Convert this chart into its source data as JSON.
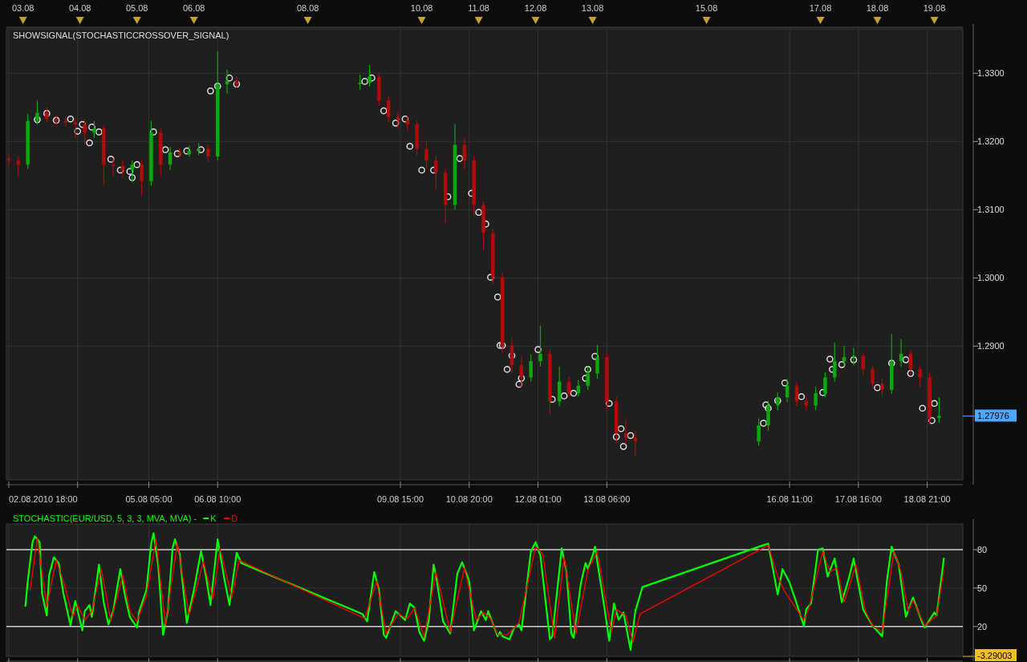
{
  "chart_data": [
    {
      "type": "candlestick",
      "title": "SHOWSIGNAL(STOCHASTICCROSSOVER_SIGNAL)",
      "x": [
        "2010-08-02T18:00",
        "2010-08-02T22:00",
        "2010-08-03T02:00",
        "2010-08-03T06:00",
        "2010-08-03T10:00",
        "2010-08-03T14:00",
        "2010-08-03T18:00",
        "2010-08-03T22:00",
        "2010-08-04T02:00",
        "2010-08-04T06:00",
        "2010-08-04T10:00",
        "2010-08-04T14:00",
        "2010-08-04T18:00",
        "2010-08-04T22:00",
        "2010-08-05T02:00",
        "2010-08-05T06:00",
        "2010-08-05T10:00",
        "2010-08-05T14:00",
        "2010-08-05T18:00",
        "2010-08-05T22:00",
        "2010-08-06T02:00",
        "2010-08-06T06:00",
        "2010-08-06T10:00",
        "2010-08-06T14:00",
        "2010-08-06T18:00",
        "2010-08-08T22:00",
        "2010-08-09T02:00",
        "2010-08-09T06:00",
        "2010-08-09T10:00",
        "2010-08-09T14:00",
        "2010-08-09T18:00",
        "2010-08-09T22:00",
        "2010-08-10T02:00",
        "2010-08-10T06:00",
        "2010-08-10T10:00",
        "2010-08-10T14:00",
        "2010-08-10T18:00",
        "2010-08-10T22:00",
        "2010-08-11T02:00",
        "2010-08-11T06:00",
        "2010-08-11T10:00",
        "2010-08-11T14:00",
        "2010-08-11T18:00",
        "2010-08-11T22:00",
        "2010-08-12T02:00",
        "2010-08-12T06:00",
        "2010-08-12T10:00",
        "2010-08-12T14:00",
        "2010-08-12T18:00",
        "2010-08-12T22:00",
        "2010-08-13T02:00",
        "2010-08-13T06:00",
        "2010-08-13T10:00",
        "2010-08-13T14:00",
        "2010-08-13T18:00",
        "2010-08-15T22:00",
        "2010-08-16T02:00",
        "2010-08-16T06:00",
        "2010-08-16T10:00",
        "2010-08-16T14:00",
        "2010-08-16T18:00",
        "2010-08-16T22:00",
        "2010-08-17T02:00",
        "2010-08-17T06:00",
        "2010-08-17T10:00",
        "2010-08-17T14:00",
        "2010-08-17T18:00",
        "2010-08-17T22:00",
        "2010-08-18T02:00",
        "2010-08-18T06:00",
        "2010-08-18T10:00",
        "2010-08-18T14:00",
        "2010-08-18T18:00",
        "2010-08-18T22:00",
        "2010-08-19T02:00"
      ],
      "ohlc": [
        [
          1.3175,
          1.3181,
          1.3165,
          1.3172
        ],
        [
          1.3172,
          1.3178,
          1.3148,
          1.3166
        ],
        [
          1.3166,
          1.324,
          1.316,
          1.323
        ],
        [
          1.323,
          1.326,
          1.3225,
          1.3242
        ],
        [
          1.3242,
          1.325,
          1.3228,
          1.3233
        ],
        [
          1.3233,
          1.3238,
          1.3224,
          1.323
        ],
        [
          1.323,
          1.3236,
          1.3222,
          1.3228
        ],
        [
          1.3228,
          1.3234,
          1.3205,
          1.3225
        ],
        [
          1.3225,
          1.3232,
          1.3195,
          1.3213
        ],
        [
          1.3213,
          1.323,
          1.3205,
          1.3219
        ],
        [
          1.3219,
          1.3224,
          1.3136,
          1.3166
        ],
        [
          1.3166,
          1.3175,
          1.315,
          1.3164
        ],
        [
          1.3164,
          1.3172,
          1.3148,
          1.3158
        ],
        [
          1.3158,
          1.3172,
          1.314,
          1.3166
        ],
        [
          1.3166,
          1.3172,
          1.312,
          1.3142
        ],
        [
          1.3142,
          1.323,
          1.3135,
          1.3213
        ],
        [
          1.3213,
          1.322,
          1.315,
          1.3166
        ],
        [
          1.3166,
          1.3192,
          1.3158,
          1.3184
        ],
        [
          1.3184,
          1.319,
          1.3176,
          1.3181
        ],
        [
          1.3181,
          1.3194,
          1.3178,
          1.3186
        ],
        [
          1.3186,
          1.3198,
          1.318,
          1.3189
        ],
        [
          1.3189,
          1.3195,
          1.317,
          1.3178
        ],
        [
          1.3178,
          1.3332,
          1.3172,
          1.3284
        ],
        [
          1.3284,
          1.3305,
          1.327,
          1.3289
        ],
        [
          1.3289,
          1.3296,
          1.3278,
          1.3284
        ],
        [
          1.3284,
          1.3298,
          1.3276,
          1.3286
        ],
        [
          1.3286,
          1.3312,
          1.328,
          1.3295
        ],
        [
          1.3295,
          1.33,
          1.3252,
          1.326
        ],
        [
          1.326,
          1.3266,
          1.3228,
          1.3236
        ],
        [
          1.3236,
          1.3244,
          1.3218,
          1.3231
        ],
        [
          1.3231,
          1.3238,
          1.3215,
          1.3225
        ],
        [
          1.3225,
          1.323,
          1.318,
          1.3189
        ],
        [
          1.3189,
          1.32,
          1.316,
          1.3172
        ],
        [
          1.3172,
          1.318,
          1.313,
          1.3154
        ],
        [
          1.3154,
          1.316,
          1.308,
          1.3107
        ],
        [
          1.3107,
          1.3226,
          1.31,
          1.3195
        ],
        [
          1.3195,
          1.3205,
          1.316,
          1.3172
        ],
        [
          1.3172,
          1.3178,
          1.3092,
          1.3107
        ],
        [
          1.3107,
          1.3112,
          1.304,
          1.3066
        ],
        [
          1.3066,
          1.3072,
          1.299,
          1.3001
        ],
        [
          1.3001,
          1.3008,
          1.289,
          1.2901
        ],
        [
          1.2901,
          1.2912,
          1.286,
          1.2872
        ],
        [
          1.2872,
          1.2885,
          1.284,
          1.2854
        ],
        [
          1.2854,
          1.2888,
          1.2848,
          1.2878
        ],
        [
          1.2878,
          1.293,
          1.287,
          1.2889
        ],
        [
          1.2889,
          1.2895,
          1.28,
          1.2819
        ],
        [
          1.2819,
          1.287,
          1.2812,
          1.2848
        ],
        [
          1.2848,
          1.2855,
          1.2825,
          1.2831
        ],
        [
          1.2831,
          1.285,
          1.2826,
          1.2842
        ],
        [
          1.2842,
          1.287,
          1.2836,
          1.286
        ],
        [
          1.286,
          1.2902,
          1.2852,
          1.2884
        ],
        [
          1.2884,
          1.289,
          1.2808,
          1.2819
        ],
        [
          1.2819,
          1.2826,
          1.2758,
          1.2772
        ],
        [
          1.2772,
          1.2792,
          1.2756,
          1.2766
        ],
        [
          1.2766,
          1.2775,
          1.274,
          1.276
        ],
        [
          1.276,
          1.2794,
          1.2754,
          1.2784
        ],
        [
          1.2784,
          1.282,
          1.2776,
          1.2813
        ],
        [
          1.2813,
          1.2832,
          1.2806,
          1.2825
        ],
        [
          1.2825,
          1.2852,
          1.2818,
          1.2842
        ],
        [
          1.2842,
          1.2848,
          1.2812,
          1.2819
        ],
        [
          1.2819,
          1.2826,
          1.2805,
          1.2813
        ],
        [
          1.2813,
          1.284,
          1.2806,
          1.2831
        ],
        [
          1.2831,
          1.2862,
          1.2825,
          1.2854
        ],
        [
          1.2854,
          1.2905,
          1.2848,
          1.2878
        ],
        [
          1.2878,
          1.29,
          1.287,
          1.2884
        ],
        [
          1.2884,
          1.2898,
          1.2872,
          1.2886
        ],
        [
          1.2886,
          1.289,
          1.2858,
          1.2866
        ],
        [
          1.2866,
          1.2872,
          1.2838,
          1.2845
        ],
        [
          1.2845,
          1.2852,
          1.2828,
          1.2836
        ],
        [
          1.2836,
          1.2918,
          1.283,
          1.2878
        ],
        [
          1.2878,
          1.291,
          1.287,
          1.2889
        ],
        [
          1.2889,
          1.2895,
          1.2856,
          1.2866
        ],
        [
          1.2866,
          1.2872,
          1.284,
          1.2854
        ],
        [
          1.2854,
          1.286,
          1.2785,
          1.2795
        ],
        [
          1.2795,
          1.2825,
          1.2788,
          1.27976
        ]
      ],
      "series": [
        {
          "type": "scatter",
          "color": "#dddddd",
          "x": [
            "2010-08-03T06:00",
            "2010-08-03T10:00",
            "2010-08-03T14:00",
            "2010-08-03T20:00",
            "2010-08-03T23:00",
            "2010-08-04T01:00",
            "2010-08-04T04:00",
            "2010-08-04T05:00",
            "2010-08-04T08:00",
            "2010-08-04T13:00",
            "2010-08-04T17:00",
            "2010-08-04T21:00",
            "2010-08-04T22:00",
            "2010-08-05T00:00",
            "2010-08-05T07:00",
            "2010-08-05T12:00",
            "2010-08-05T17:00",
            "2010-08-05T21:00",
            "2010-08-06T03:00",
            "2010-08-06T07:00",
            "2010-08-06T10:00",
            "2010-08-06T15:00",
            "2010-08-06T18:00",
            "2010-08-09T00:00",
            "2010-08-09T03:00",
            "2010-08-09T08:00",
            "2010-08-09T13:00",
            "2010-08-09T17:00",
            "2010-08-09T19:00",
            "2010-08-10T00:00",
            "2010-08-10T05:00",
            "2010-08-10T11:00",
            "2010-08-10T16:00",
            "2010-08-10T21:00",
            "2010-08-11T00:00",
            "2010-08-11T03:00",
            "2010-08-11T05:00",
            "2010-08-11T08:00",
            "2010-08-11T09:00",
            "2010-08-11T10:00",
            "2010-08-11T12:00",
            "2010-08-11T14:00",
            "2010-08-11T17:00",
            "2010-08-11T18:00",
            "2010-08-12T01:00",
            "2010-08-12T07:00",
            "2010-08-12T12:00",
            "2010-08-12T16:00",
            "2010-08-12T21:00",
            "2010-08-12T22:00",
            "2010-08-13T01:00",
            "2010-08-13T07:00",
            "2010-08-13T10:00",
            "2010-08-13T12:00",
            "2010-08-13T13:00",
            "2010-08-13T16:00",
            "2010-08-16T00:00",
            "2010-08-16T01:00",
            "2010-08-16T02:00",
            "2010-08-16T06:00",
            "2010-08-16T09:00",
            "2010-08-16T16:00",
            "2010-08-17T01:00",
            "2010-08-17T04:00",
            "2010-08-17T05:00",
            "2010-08-17T09:00",
            "2010-08-17T14:00",
            "2010-08-18T00:00",
            "2010-08-18T06:00",
            "2010-08-18T12:00",
            "2010-08-18T14:00",
            "2010-08-18T19:00",
            "2010-08-18T23:00",
            "2010-08-19T00:00"
          ],
          "values": [
            1.3232,
            1.3241,
            1.3231,
            1.3233,
            1.3215,
            1.3225,
            1.3198,
            1.3221,
            1.3214,
            1.3174,
            1.3158,
            1.3156,
            1.3147,
            1.3166,
            1.3214,
            1.3188,
            1.3182,
            1.3186,
            1.3188,
            1.3274,
            1.3281,
            1.3293,
            1.3284,
            1.3288,
            1.3293,
            1.3245,
            1.3227,
            1.3233,
            1.3193,
            1.3158,
            1.3158,
            1.3119,
            1.3175,
            1.3124,
            1.3096,
            1.3079,
            1.3001,
            1.2972,
            1.2901,
            1.2901,
            1.2866,
            1.2886,
            1.2844,
            1.2853,
            1.2895,
            1.2822,
            1.2827,
            1.2831,
            1.2853,
            1.2866,
            1.2885,
            1.2816,
            1.2767,
            1.2779,
            1.2753,
            1.2769,
            1.2787,
            1.2814,
            1.2809,
            1.282,
            1.2846,
            1.2826,
            1.2832,
            1.2881,
            1.2866,
            1.2873,
            1.288,
            1.2839,
            1.2875,
            1.288,
            1.286,
            1.2809,
            1.2791,
            1.2816
          ]
        }
      ],
      "marker": "circle",
      "xlim": [
        "2010-08-02T17:00",
        "2010-08-19T12:00"
      ],
      "xticks": [
        {
          "value": "2010-08-02T18:00",
          "label": "02.08.2010 18:00"
        },
        {
          "value": "2010-08-03T23:00",
          "label": null
        },
        {
          "value": "2010-08-05T05:00",
          "label": "05.08 05:00"
        },
        {
          "value": "2010-08-06T10:00",
          "label": "06.08 10:00"
        },
        {
          "value": "2010-08-09T15:00",
          "label": "09.08 15:00"
        },
        {
          "value": "2010-08-10T20:00",
          "label": "10.08 20:00"
        },
        {
          "value": "2010-08-12T01:00",
          "label": "12.08 01:00"
        },
        {
          "value": "2010-08-13T06:00",
          "label": "13.08 06:00"
        },
        {
          "value": "2010-08-16T11:00",
          "label": "16.08 11:00"
        },
        {
          "value": "2010-08-17T16:00",
          "label": "17.08 16:00"
        },
        {
          "value": "2010-08-18T21:00",
          "label": "18.08 21:00"
        }
      ],
      "x2lim": [
        "2010-08-02T17:00",
        "2010-08-19T12:00"
      ],
      "x2ticks": [
        {
          "value": "2010-08-03",
          "label": "03.08"
        },
        {
          "value": "2010-08-04",
          "label": "04.08"
        },
        {
          "value": "2010-08-05",
          "label": "05.08"
        },
        {
          "value": "2010-08-06",
          "label": "06.08"
        },
        {
          "value": "2010-08-08",
          "label": "08.08"
        },
        {
          "value": "2010-08-10",
          "label": "10.08"
        },
        {
          "value": "2010-08-11",
          "label": "11.08"
        },
        {
          "value": "2010-08-12",
          "label": "12.08"
        },
        {
          "value": "2010-08-13",
          "label": "13.08"
        },
        {
          "value": "2010-08-15",
          "label": "15.08"
        },
        {
          "value": "2010-08-17",
          "label": "17.08"
        },
        {
          "value": "2010-08-18",
          "label": "18.08"
        },
        {
          "value": "2010-08-19",
          "label": "19.08"
        }
      ],
      "ylim": [
        1.2704,
        1.3365
      ],
      "yticks": [
        {
          "value": 1.29,
          "label": "1.2900"
        },
        {
          "value": 1.3,
          "label": "1.3000"
        },
        {
          "value": 1.31,
          "label": "1.3100"
        },
        {
          "value": 1.32,
          "label": "1.3200"
        },
        {
          "value": 1.33,
          "label": "1.3300"
        }
      ],
      "grid": true,
      "ref_lines": [
        {
          "axis": "y",
          "value": 1.27976,
          "label": "1.27976",
          "color": "#4da6ff"
        }
      ]
    },
    {
      "type": "line",
      "title": "STOCHASTIC(EUR/USD, 5, 3, 3, MVA, MVA) -",
      "series": [
        {
          "name": "K",
          "color": "#00ff00",
          "x": [
            "2010-08-03T01:00",
            "2010-08-03T02:00",
            "2010-08-03T04:00",
            "2010-08-03T05:00",
            "2010-08-03T07:00",
            "2010-08-03T08:00",
            "2010-08-03T10:00",
            "2010-08-03T11:00",
            "2010-08-03T13:00",
            "2010-08-03T15:00",
            "2010-08-03T17:00",
            "2010-08-03T20:00",
            "2010-08-03T22:00",
            "2010-08-04T01:00",
            "2010-08-04T02:00",
            "2010-08-04T04:00",
            "2010-08-04T05:00",
            "2010-08-04T08:00",
            "2010-08-04T10:00",
            "2010-08-04T12:00",
            "2010-08-04T14:00",
            "2010-08-04T17:00",
            "2010-08-04T19:00",
            "2010-08-04T21:00",
            "2010-08-05T00:00",
            "2010-08-05T01:00",
            "2010-08-05T04:00",
            "2010-08-05T06:00",
            "2010-08-05T07:00",
            "2010-08-05T09:00",
            "2010-08-05T11:00",
            "2010-08-05T13:00",
            "2010-08-05T15:00",
            "2010-08-05T16:00",
            "2010-08-05T18:00",
            "2010-08-05T21:00",
            "2010-08-06T00:00",
            "2010-08-06T03:00",
            "2010-08-06T05:00",
            "2010-08-06T07:00",
            "2010-08-06T10:00",
            "2010-08-06T13:00",
            "2010-08-06T15:00",
            "2010-08-06T18:00",
            "2010-08-06T20:00",
            "2010-08-08T23:00",
            "2010-08-09T01:00",
            "2010-08-09T04:00",
            "2010-08-09T06:00",
            "2010-08-09T08:00",
            "2010-08-09T09:00",
            "2010-08-09T13:00",
            "2010-08-09T15:00",
            "2010-08-09T17:00",
            "2010-08-09T19:00",
            "2010-08-09T21:00",
            "2010-08-09T23:00",
            "2010-08-10T01:00",
            "2010-08-10T03:00",
            "2010-08-10T05:00",
            "2010-08-10T06:00",
            "2010-08-10T09:00",
            "2010-08-10T12:00",
            "2010-08-10T15:00",
            "2010-08-10T17:00",
            "2010-08-10T20:00",
            "2010-08-10T22:00",
            "2010-08-11T01:00",
            "2010-08-11T03:00",
            "2010-08-11T04:00",
            "2010-08-11T08:00",
            "2010-08-11T09:00",
            "2010-08-11T10:00",
            "2010-08-11T13:00",
            "2010-08-11T15:00",
            "2010-08-11T17:00",
            "2010-08-11T18:00",
            "2010-08-11T19:00",
            "2010-08-11T22:00",
            "2010-08-12T00:00",
            "2010-08-12T02:00",
            "2010-08-12T06:00",
            "2010-08-12T07:00",
            "2010-08-12T11:00",
            "2010-08-12T13:00",
            "2010-08-12T15:00",
            "2010-08-12T16:00",
            "2010-08-12T19:00",
            "2010-08-12T21:00",
            "2010-08-12T22:00",
            "2010-08-13T00:00",
            "2010-08-13T01:00",
            "2010-08-13T05:00",
            "2010-08-13T07:00",
            "2010-08-13T09:00",
            "2010-08-13T11:00",
            "2010-08-13T13:00",
            "2010-08-13T16:00",
            "2010-08-13T18:00",
            "2010-08-13T21:00",
            "2010-08-16T00:00",
            "2010-08-16T02:00",
            "2010-08-16T06:00",
            "2010-08-16T08:00",
            "2010-08-16T11:00",
            "2010-08-16T14:00",
            "2010-08-16T17:00",
            "2010-08-16T18:00",
            "2010-08-16T20:00",
            "2010-08-16T23:00",
            "2010-08-17T01:00",
            "2010-08-17T03:00",
            "2010-08-17T06:00",
            "2010-08-17T09:00",
            "2010-08-17T12:00",
            "2010-08-17T14:00",
            "2010-08-17T18:00",
            "2010-08-17T22:00",
            "2010-08-18T02:00",
            "2010-08-18T04:00",
            "2010-08-18T06:00",
            "2010-08-18T09:00",
            "2010-08-18T12:00",
            "2010-08-18T15:00",
            "2010-08-18T19:00",
            "2010-08-18T20:00",
            "2010-08-19T00:00",
            "2010-08-19T01:00",
            "2010-08-19T04:00"
          ],
          "values": [
            36,
            55.5,
            85.8,
            90.5,
            85.8,
            46,
            28.6,
            60,
            74,
            69.5,
            46,
            21,
            40,
            17,
            32,
            36.8,
            27.5,
            68.3,
            39,
            21.6,
            32,
            64.8,
            43.8,
            27.5,
            19.3,
            32,
            48.5,
            84.7,
            92.8,
            67,
            13.5,
            32,
            81,
            88,
            76.5,
            22.8,
            48.5,
            78.8,
            60,
            36.8,
            88,
            55.5,
            36.8,
            77.6,
            69.5,
            29.8,
            24,
            62.5,
            48.5,
            13.5,
            11.2,
            32,
            28.6,
            25,
            38,
            34.5,
            15.8,
            8.8,
            25,
            68.3,
            60,
            24,
            14.6,
            61.3,
            70.2,
            55.5,
            17,
            32,
            25,
            32,
            12.3,
            15.8,
            12.3,
            10,
            19.3,
            21.6,
            17,
            32,
            78.8,
            85.8,
            75.3,
            10,
            12.3,
            81,
            62.5,
            14.6,
            11.2,
            53,
            69.5,
            65,
            75.3,
            82.3,
            34.5,
            8.8,
            38,
            25.2,
            31,
            1.8,
            32,
            50.8,
            83.5,
            84.7,
            45,
            64.8,
            54.3,
            38,
            20.5,
            33.3,
            38,
            80,
            81,
            59,
            73,
            39,
            57.8,
            73,
            33.3,
            20.5,
            12.3,
            55.5,
            82.3,
            68.3,
            27.5,
            42.6,
            22.8,
            19.3,
            31,
            28.6,
            73
          ]
        },
        {
          "name": "D",
          "color": "#ff0000",
          "x": [
            "2010-08-03T03:00",
            "2010-08-03T06:00",
            "2010-08-03T10:00",
            "2010-08-03T14:00",
            "2010-08-03T17:00",
            "2010-08-03T21:00",
            "2010-08-03T23:00",
            "2010-08-04T02:00",
            "2010-08-04T05:00",
            "2010-08-04T09:00",
            "2010-08-04T13:00",
            "2010-08-04T18:00",
            "2010-08-04T21:00",
            "2010-08-05T00:00",
            "2010-08-05T04:00",
            "2010-08-05T08:00",
            "2010-08-05T12:00",
            "2010-08-05T17:00",
            "2010-08-05T22:00",
            "2010-08-06T04:00",
            "2010-08-06T08:00",
            "2010-08-06T11:00",
            "2010-08-06T16:00",
            "2010-08-06T19:00",
            "2010-08-09T00:00",
            "2010-08-09T05:00",
            "2010-08-09T09:00",
            "2010-08-09T14:00",
            "2010-08-09T18:00",
            "2010-08-09T21:00",
            "2010-08-10T01:00",
            "2010-08-10T06:00",
            "2010-08-10T12:00",
            "2010-08-10T18:00",
            "2010-08-10T23:00",
            "2010-08-11T02:00",
            "2010-08-11T05:00",
            "2010-08-11T08:00",
            "2010-08-11T12:00",
            "2010-08-11T17:00",
            "2010-08-12T00:00",
            "2010-08-12T03:00",
            "2010-08-12T08:00",
            "2010-08-12T12:00",
            "2010-08-12T17:00",
            "2010-08-12T22:00",
            "2010-08-13T02:00",
            "2010-08-13T05:00",
            "2010-08-13T08:00",
            "2010-08-13T10:00",
            "2010-08-13T14:00",
            "2010-08-13T17:00",
            "2010-08-13T20:00",
            "2010-08-16T02:00",
            "2010-08-16T06:00",
            "2010-08-16T09:00",
            "2010-08-16T17:00",
            "2010-08-16T19:00",
            "2010-08-17T01:00",
            "2010-08-17T04:00",
            "2010-08-17T07:00",
            "2010-08-17T10:00",
            "2010-08-17T15:00",
            "2010-08-17T19:00",
            "2010-08-17T22:00",
            "2010-08-18T02:00",
            "2010-08-18T07:00",
            "2010-08-18T10:00",
            "2010-08-18T13:00",
            "2010-08-18T15:00",
            "2010-08-18T20:00",
            "2010-08-19T01:00",
            "2010-08-19T04:00"
          ],
          "values": [
            48.5,
            88.6,
            35.6,
            71.8,
            55.5,
            27.5,
            36.8,
            25,
            32,
            64.8,
            24,
            60,
            32,
            24,
            43.8,
            88,
            21.6,
            84.7,
            28.6,
            70.7,
            41.5,
            81,
            42.6,
            71.8,
            26.3,
            55.5,
            14.6,
            29.8,
            26.3,
            34.5,
            12.3,
            62.5,
            15.8,
            65.8,
            25,
            31,
            26.3,
            13.5,
            13.5,
            22.8,
            82.3,
            76.5,
            11.2,
            74.2,
            14.6,
            64,
            78.8,
            46,
            15.8,
            33.3,
            28.6,
            7.6,
            29.8,
            83.5,
            59,
            47.3,
            25,
            33.3,
            78.8,
            62.5,
            65.8,
            39,
            68.3,
            32,
            20.5,
            15.8,
            78.8,
            62.5,
            32,
            40.5,
            20.5,
            28.6,
            64
          ]
        }
      ],
      "legend": "top left",
      "xlim": [
        "2010-08-02T17:00",
        "2010-08-19T12:00"
      ],
      "xticks": [
        {
          "value": "2010-08-02T18:00",
          "label": null
        },
        {
          "value": "2010-08-03T23:00",
          "label": null
        },
        {
          "value": "2010-08-05T05:00",
          "label": null
        },
        {
          "value": "2010-08-06T10:00",
          "label": null
        },
        {
          "value": "2010-08-09T15:00",
          "label": null
        },
        {
          "value": "2010-08-10T20:00",
          "label": null
        },
        {
          "value": "2010-08-12T01:00",
          "label": null
        },
        {
          "value": "2010-08-13T06:00",
          "label": null
        },
        {
          "value": "2010-08-16T11:00",
          "label": null
        },
        {
          "value": "2010-08-17T16:00",
          "label": null
        },
        {
          "value": "2010-08-18T21:00",
          "label": null
        }
      ],
      "ylim": [
        -3.29003,
        100
      ],
      "yticks": [
        20,
        50,
        80
      ],
      "tick_labels": "y",
      "grid": true,
      "ref_lines": [
        {
          "axis": "y",
          "value": 80,
          "color": "#cccccc"
        },
        {
          "axis": "y",
          "value": 20,
          "color": "#cccccc"
        },
        {
          "axis": "y",
          "value": -3.29003,
          "label": "-3.29003",
          "color": "#f0c020"
        }
      ]
    }
  ]
}
